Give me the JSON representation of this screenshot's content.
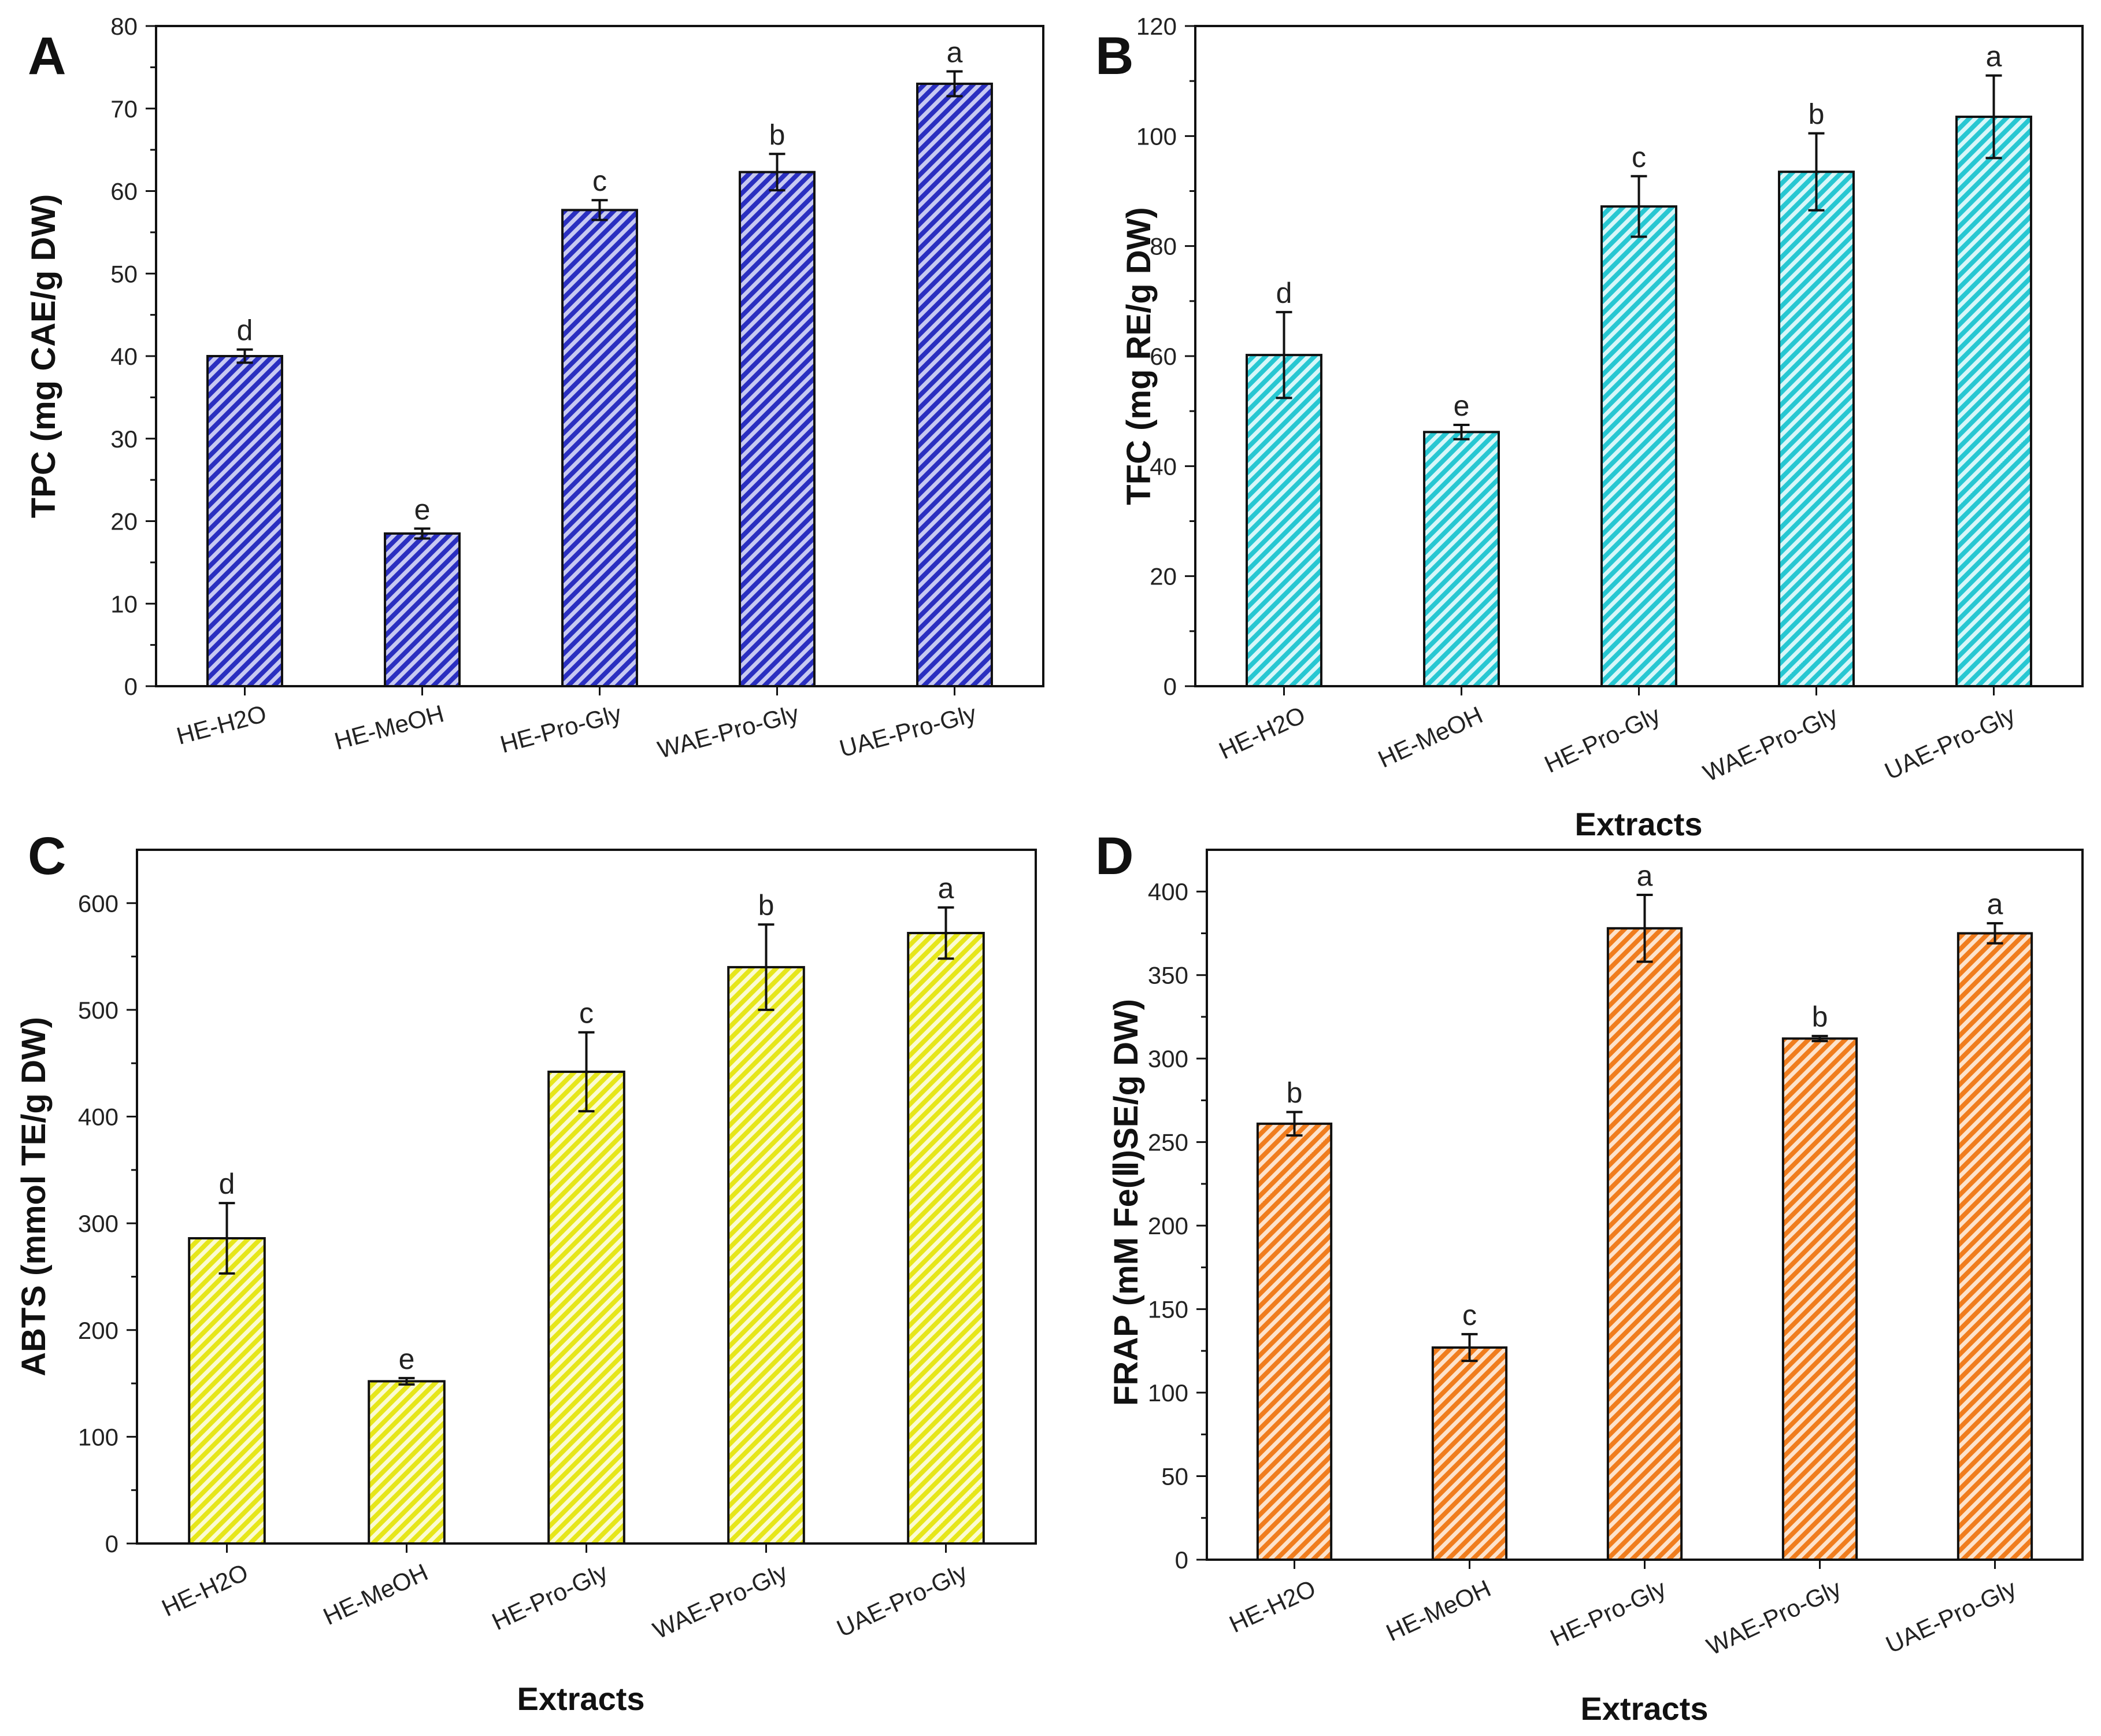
{
  "chart_data": [
    {
      "panel": "A",
      "type": "bar",
      "categories": [
        "HE-H2O",
        "HE-MeOH",
        "HE-Pro-Gly",
        "WAE-Pro-Gly",
        "UAE-Pro-Gly"
      ],
      "values": [
        40,
        18.5,
        57.7,
        62.3,
        73
      ],
      "errors": [
        0.8,
        0.6,
        1.2,
        2.2,
        1.5
      ],
      "labels": [
        "d",
        "e",
        "c",
        "b",
        "a"
      ],
      "ylabel": "TPC (mg CAE/g DW)",
      "xlabel": "",
      "ylim": [
        0,
        80
      ],
      "yticks": [
        0,
        10,
        20,
        30,
        40,
        50,
        60,
        70,
        80
      ],
      "color": "#2a2fc0",
      "color_light": "#c7c9f2",
      "grid": false
    },
    {
      "panel": "B",
      "type": "bar",
      "categories": [
        "HE-H2O",
        "HE-MeOH",
        "HE-Pro-Gly",
        "WAE-Pro-Gly",
        "UAE-Pro-Gly"
      ],
      "values": [
        60.2,
        46.2,
        87.2,
        93.5,
        103.5
      ],
      "errors": [
        7.8,
        1.3,
        5.5,
        7,
        7.5
      ],
      "labels": [
        "d",
        "e",
        "c",
        "b",
        "a"
      ],
      "ylabel": "TFC (mg RE/g DW)",
      "xlabel": "Extracts",
      "ylim": [
        0,
        120
      ],
      "yticks": [
        0,
        20,
        40,
        60,
        80,
        100,
        120
      ],
      "color": "#27c7d2",
      "color_light": "#d8f7f9",
      "grid": false
    },
    {
      "panel": "C",
      "type": "bar",
      "categories": [
        "HE-H2O",
        "HE-MeOH",
        "HE-Pro-Gly",
        "WAE-Pro-Gly",
        "UAE-Pro-Gly"
      ],
      "values": [
        286,
        152,
        442,
        540,
        572
      ],
      "errors": [
        33,
        3,
        37,
        40,
        24
      ],
      "labels": [
        "d",
        "e",
        "c",
        "b",
        "a"
      ],
      "ylabel": "ABTS (mmol TE/g DW)",
      "xlabel": "Extracts",
      "ylim": [
        0,
        650
      ],
      "yticks": [
        0,
        100,
        200,
        300,
        400,
        500,
        600
      ],
      "color": "#e6e61a",
      "color_light": "#fbfbd2",
      "grid": false
    },
    {
      "panel": "D",
      "type": "bar",
      "categories": [
        "HE-H2O",
        "HE-MeOH",
        "HE-Pro-Gly",
        "WAE-Pro-Gly",
        "UAE-Pro-Gly"
      ],
      "values": [
        261,
        127,
        378,
        312,
        375
      ],
      "errors": [
        7,
        8,
        20,
        1.5,
        6
      ],
      "labels": [
        "b",
        "c",
        "a",
        "b",
        "a"
      ],
      "ylabel": "FRAP (mM Fe(Ⅱ)SE/g DW)",
      "xlabel": "Extracts",
      "ylim": [
        0,
        425
      ],
      "yticks": [
        0,
        50,
        100,
        150,
        200,
        250,
        300,
        350,
        400
      ],
      "color": "#f07d1e",
      "color_light": "#fde3cc",
      "grid": false
    }
  ]
}
